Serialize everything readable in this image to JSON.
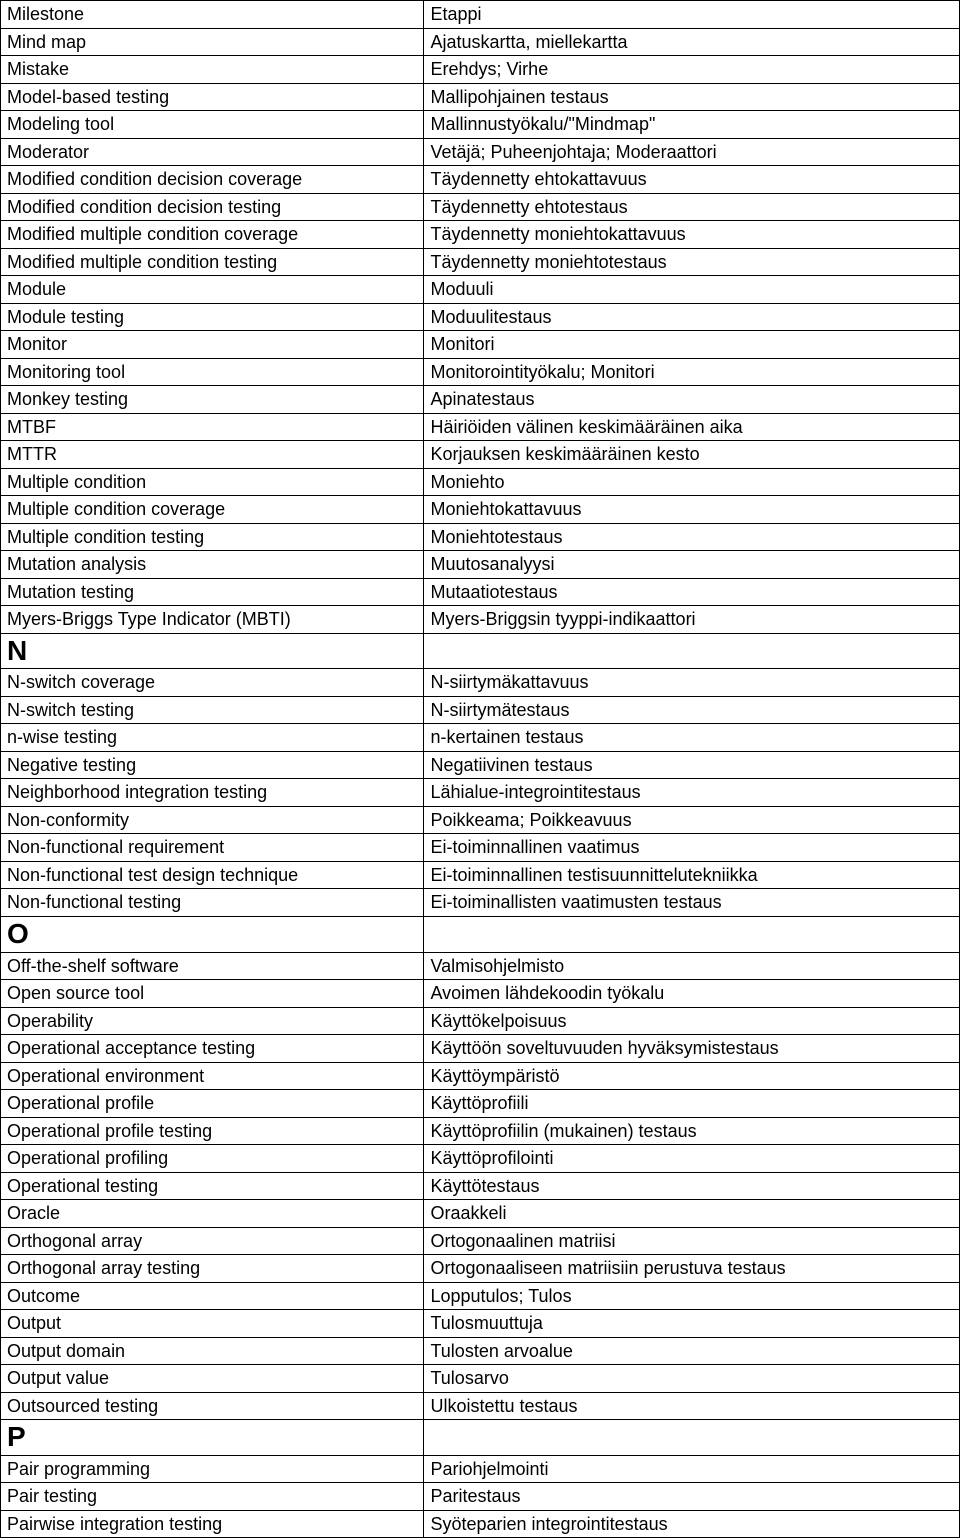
{
  "table": {
    "columns": [
      {
        "width_pct": 44
      },
      {
        "width_pct": 56
      }
    ],
    "font_family": "Arial",
    "font_size_pt": 13,
    "section_font_size_pt": 21,
    "border_color": "#000000",
    "background_color": "#ffffff",
    "text_color": "#000000",
    "rows": [
      {
        "en": "Milestone",
        "fi": "Etappi"
      },
      {
        "en": "Mind map",
        "fi": "Ajatuskartta, miellekartta"
      },
      {
        "en": "Mistake",
        "fi": "Erehdys; Virhe"
      },
      {
        "en": "Model-based testing",
        "fi": "Mallipohjainen testaus"
      },
      {
        "en": "Modeling tool",
        "fi": "Mallinnustyökalu/\"Mindmap\""
      },
      {
        "en": "Moderator",
        "fi": "Vetäjä; Puheenjohtaja; Moderaattori"
      },
      {
        "en": "Modified condition decision coverage",
        "fi": "Täydennetty ehtokattavuus"
      },
      {
        "en": "Modified condition decision testing",
        "fi": "Täydennetty ehtotestaus"
      },
      {
        "en": "Modified multiple condition coverage",
        "fi": "Täydennetty moniehtokattavuus"
      },
      {
        "en": "Modified multiple condition testing",
        "fi": "Täydennetty moniehtotestaus"
      },
      {
        "en": "Module",
        "fi": "Moduuli"
      },
      {
        "en": "Module testing",
        "fi": "Moduulitestaus"
      },
      {
        "en": "Monitor",
        "fi": "Monitori"
      },
      {
        "en": "Monitoring tool",
        "fi": "Monitorointityökalu; Monitori"
      },
      {
        "en": "Monkey testing",
        "fi": "Apinatestaus"
      },
      {
        "en": "MTBF",
        "fi": "Häiriöiden välinen keskimääräinen aika"
      },
      {
        "en": "MTTR",
        "fi": "Korjauksen keskimääräinen kesto"
      },
      {
        "en": "Multiple condition",
        "fi": "Moniehto"
      },
      {
        "en": "Multiple condition coverage",
        "fi": "Moniehtokattavuus"
      },
      {
        "en": "Multiple condition testing",
        "fi": "Moniehtotestaus"
      },
      {
        "en": "Mutation analysis",
        "fi": "Muutosanalyysi"
      },
      {
        "en": "Mutation testing",
        "fi": "Mutaatiotestaus"
      },
      {
        "en": "Myers-Briggs Type Indicator (MBTI)",
        "fi": "Myers-Briggsin tyyppi-indikaattori"
      },
      {
        "section": "N"
      },
      {
        "en": "N-switch coverage",
        "fi": "N-siirtymäkattavuus"
      },
      {
        "en": "N-switch testing",
        "fi": "N-siirtymätestaus"
      },
      {
        "en": "n-wise testing",
        "fi": "n-kertainen testaus"
      },
      {
        "en": "Negative testing",
        "fi": "Negatiivinen testaus"
      },
      {
        "en": "Neighborhood integration testing",
        "fi": "Lähialue-integrointitestaus"
      },
      {
        "en": "Non-conformity",
        "fi": "Poikkeama; Poikkeavuus"
      },
      {
        "en": "Non-functional requirement",
        "fi": "Ei-toiminnallinen vaatimus"
      },
      {
        "en": "Non-functional test design technique",
        "fi": "Ei-toiminnallinen testisuunnittelutekniikka"
      },
      {
        "en": "Non-functional testing",
        "fi": "Ei-toiminallisten vaatimusten testaus"
      },
      {
        "section": "O"
      },
      {
        "en": "Off-the-shelf software",
        "fi": "Valmisohjelmisto"
      },
      {
        "en": "Open source tool",
        "fi": "Avoimen lähdekoodin työkalu"
      },
      {
        "en": "Operability",
        "fi": "Käyttökelpoisuus"
      },
      {
        "en": "Operational acceptance testing",
        "fi": "Käyttöön soveltuvuuden hyväksymistestaus"
      },
      {
        "en": "Operational environment",
        "fi": "Käyttöympäristö"
      },
      {
        "en": "Operational profile",
        "fi": "Käyttöprofiili"
      },
      {
        "en": "Operational profile testing",
        "fi": "Käyttöprofiilin (mukainen) testaus"
      },
      {
        "en": "Operational profiling",
        "fi": "Käyttöprofilointi"
      },
      {
        "en": "Operational testing",
        "fi": "Käyttötestaus"
      },
      {
        "en": "Oracle",
        "fi": "Oraakkeli"
      },
      {
        "en": "Orthogonal array",
        "fi": "Ortogonaalinen matriisi"
      },
      {
        "en": "Orthogonal array testing",
        "fi": "Ortogonaaliseen matriisiin perustuva testaus"
      },
      {
        "en": "Outcome",
        "fi": "Lopputulos; Tulos"
      },
      {
        "en": "Output",
        "fi": "Tulosmuuttuja"
      },
      {
        "en": "Output domain",
        "fi": "Tulosten arvoalue"
      },
      {
        "en": "Output value",
        "fi": "Tulosarvo"
      },
      {
        "en": "Outsourced testing",
        "fi": "Ulkoistettu testaus"
      },
      {
        "section": "P"
      },
      {
        "en": "Pair programming",
        "fi": "Pariohjelmointi"
      },
      {
        "en": "Pair testing",
        "fi": "Paritestaus"
      },
      {
        "en": "Pairwise integration testing",
        "fi": "Syöteparien integrointitestaus"
      }
    ]
  }
}
